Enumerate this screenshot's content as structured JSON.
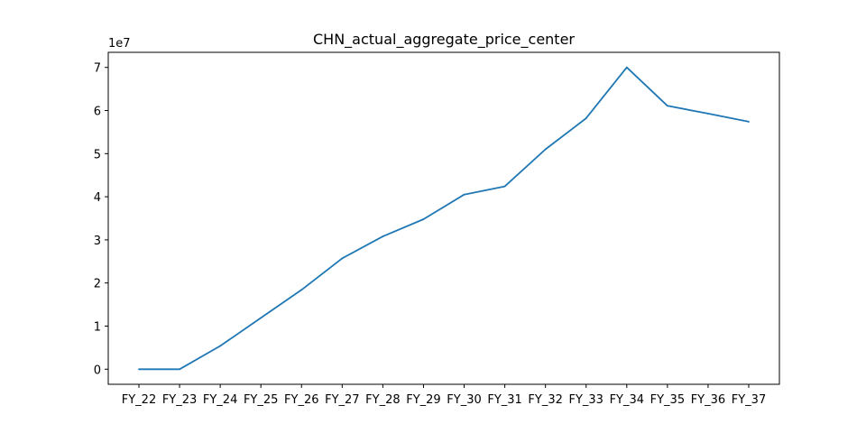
{
  "chart_data": {
    "type": "line",
    "title": "CHN_actual_aggregate_price_center",
    "xlabel": "",
    "ylabel": "",
    "y_scale_label": "1e7",
    "categories": [
      "FY_22",
      "FY_23",
      "FY_24",
      "FY_25",
      "FY_26",
      "FY_27",
      "FY_28",
      "FY_29",
      "FY_30",
      "FY_31",
      "FY_32",
      "FY_33",
      "FY_34",
      "FY_35",
      "FY_36",
      "FY_37"
    ],
    "series": [
      {
        "name": "CHN_actual_aggregate_price_center",
        "color": "#1f77b4",
        "values": [
          0,
          0,
          5400000,
          11900000,
          18400000,
          25700000,
          30800000,
          34800000,
          40500000,
          42400000,
          51000000,
          58200000,
          70000000,
          61100000,
          59300000,
          57400000
        ]
      }
    ],
    "ylim": [
      -3500000,
      73500000
    ],
    "yticks": [
      0,
      10000000,
      20000000,
      30000000,
      40000000,
      50000000,
      60000000,
      70000000
    ],
    "ytick_labels": [
      "0",
      "1",
      "2",
      "3",
      "4",
      "5",
      "6",
      "7"
    ],
    "grid": false,
    "legend": "none"
  }
}
